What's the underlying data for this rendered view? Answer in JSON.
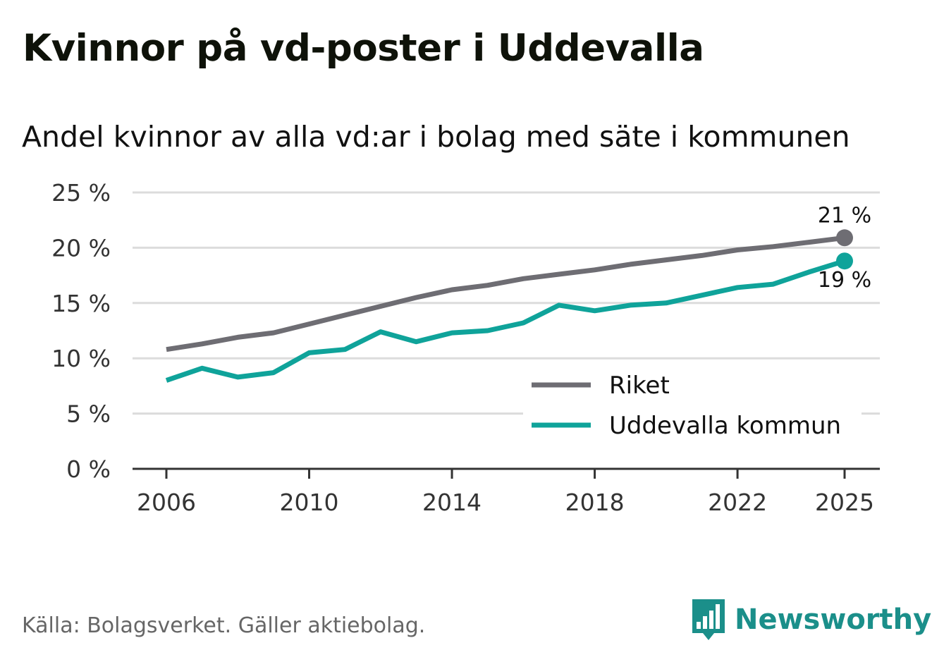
{
  "title": "Kvinnor på vd-poster i Uddevalla",
  "subtitle": "Andel kvinnor av alla vd:ar i bolag med säte i kommunen",
  "source": "Källa: Bolagsverket. Gäller aktiebolag.",
  "brand": "Newsworthy",
  "colors": {
    "riket": "#6e6d73",
    "uddevalla": "#0fa39a",
    "grid": "#dcdcdc",
    "axis": "#333333",
    "brand": "#1b8f8a"
  },
  "chart_data": {
    "type": "line",
    "title": "Kvinnor på vd-poster i Uddevalla",
    "subtitle": "Andel kvinnor av alla vd:ar i bolag med säte i kommunen",
    "xlabel": "",
    "ylabel": "",
    "x": [
      2006,
      2007,
      2008,
      2009,
      2010,
      2011,
      2012,
      2013,
      2014,
      2015,
      2016,
      2017,
      2018,
      2019,
      2020,
      2021,
      2022,
      2023,
      2024,
      2025
    ],
    "x_tick_labels": [
      "2006",
      "2010",
      "2014",
      "2018",
      "2022",
      "2025"
    ],
    "y_tick_labels": [
      "0 %",
      "5 %",
      "10 %",
      "15 %",
      "20 %",
      "25 %"
    ],
    "ylim": [
      0,
      25
    ],
    "grid": true,
    "legend_position": "lower-right",
    "series": [
      {
        "name": "Riket",
        "color": "#6e6d73",
        "end_label": "21 %",
        "values": [
          10.8,
          11.3,
          11.9,
          12.3,
          13.1,
          13.9,
          14.7,
          15.5,
          16.2,
          16.6,
          17.2,
          17.6,
          18.0,
          18.5,
          18.9,
          19.3,
          19.8,
          20.1,
          20.5,
          20.9
        ]
      },
      {
        "name": "Uddevalla kommun",
        "color": "#0fa39a",
        "end_label": "19 %",
        "values": [
          8.0,
          9.1,
          8.3,
          8.7,
          10.5,
          10.8,
          12.4,
          11.5,
          12.3,
          12.5,
          13.2,
          14.8,
          14.3,
          14.8,
          15.0,
          15.7,
          16.4,
          16.7,
          17.8,
          18.8
        ]
      }
    ]
  }
}
